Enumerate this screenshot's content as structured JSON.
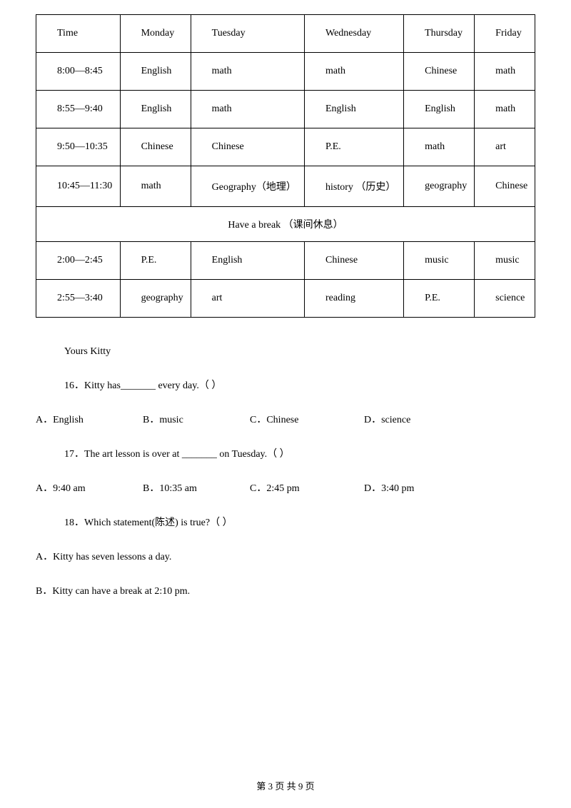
{
  "timetable": {
    "headers": [
      "Time",
      "Monday",
      "Tuesday",
      "Wednesday",
      "Thursday",
      "Friday"
    ],
    "rows": [
      [
        "8:00—8:45",
        "English",
        "math",
        "math",
        "Chinese",
        "math"
      ],
      [
        "8:55—9:40",
        "English",
        "math",
        "English",
        "English",
        "math"
      ],
      [
        "9:50—10:35",
        "Chinese",
        "Chinese",
        "P.E.",
        "math",
        "art"
      ],
      [
        "10:45—11:30",
        "math",
        "Geography（地理）",
        "history （历史）",
        "geography",
        "Chinese"
      ]
    ],
    "break_text": "Have a break （课间休息）",
    "afternoon_rows": [
      [
        "2:00—2:45",
        "P.E.",
        "English",
        "Chinese",
        "music",
        "music"
      ],
      [
        "2:55—3:40",
        "geography",
        "art",
        "reading",
        "P.E.",
        "science"
      ]
    ],
    "col_widths": [
      "17%",
      "17%",
      "16%",
      "17%",
      "16%",
      "17%"
    ]
  },
  "closing": "Yours Kitty",
  "q16": {
    "text": "16．Kitty has_______ every day.（    ）",
    "options": {
      "A": "A．English",
      "B": "B．music",
      "C": "C．Chinese",
      "D": "D．science"
    }
  },
  "q17": {
    "text": "17．The art lesson is over at _______ on Tuesday.（    ）",
    "options": {
      "A": "A．9:40 am",
      "B": "B．10:35 am",
      "C": "C．2:45 pm",
      "D": "D．3:40 pm"
    }
  },
  "q18": {
    "text": "18．Which statement(陈述) is true?（    ）",
    "s1": "A．Kitty has seven lessons a day.",
    "s2": "B．Kitty can have a break at 2:10 pm."
  },
  "footer": "第 3 页 共 9 页"
}
